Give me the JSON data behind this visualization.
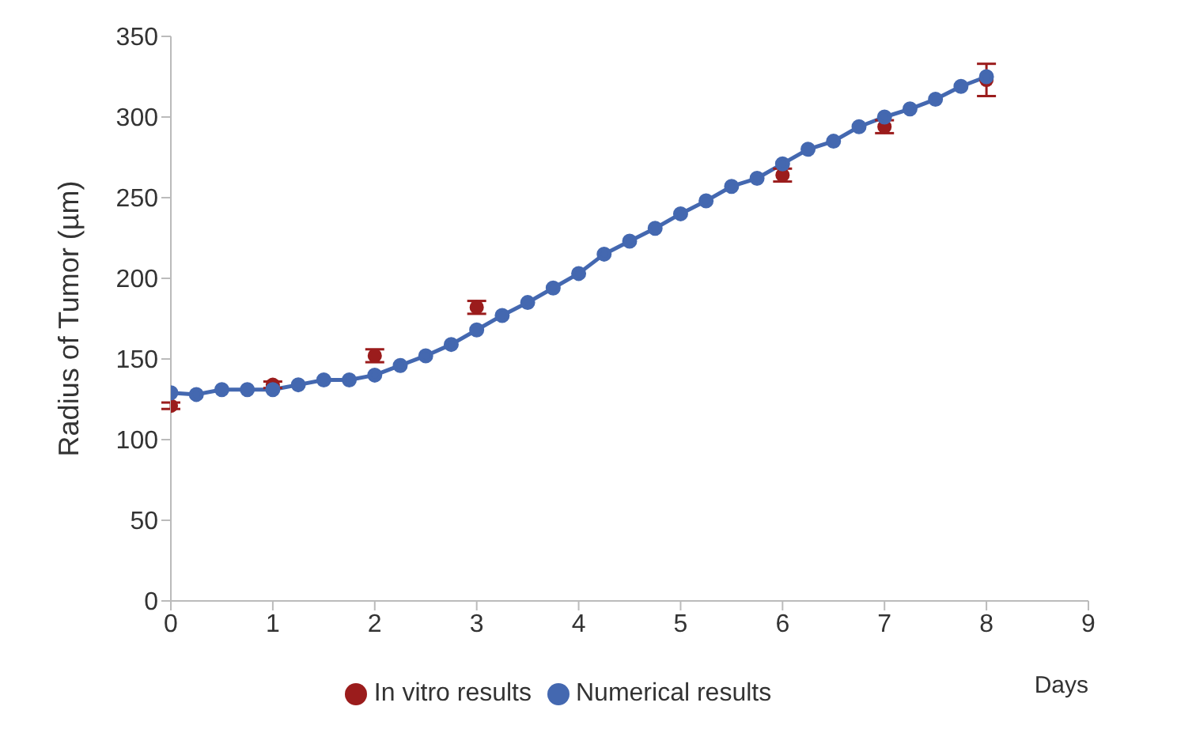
{
  "chart_data": {
    "type": "line",
    "xlabel": "Days",
    "ylabel": "Radius of Tumor (µm)",
    "xlim": [
      0,
      9
    ],
    "xticks": [
      0,
      1,
      2,
      3,
      4,
      5,
      6,
      7,
      8,
      9
    ],
    "ylim": [
      0,
      350
    ],
    "yticks": [
      0,
      50,
      100,
      150,
      200,
      250,
      300,
      350
    ],
    "grid": false,
    "legend": "bottom",
    "marker": "circle",
    "line_style": "solid",
    "series": [
      {
        "name": "In vitro results",
        "type": "scatter",
        "color": "#9b1c1c",
        "x": [
          0,
          1,
          2,
          3,
          6,
          7,
          8
        ],
        "values": [
          121,
          134,
          152,
          182,
          264,
          294,
          323
        ],
        "errors": [
          2,
          2,
          4,
          4,
          4,
          4,
          10
        ]
      },
      {
        "name": "Numerical results",
        "color": "#4468b0",
        "x": [
          0,
          0.25,
          0.5,
          0.75,
          1,
          1.25,
          1.5,
          1.75,
          2,
          2.25,
          2.5,
          2.75,
          3,
          3.25,
          3.5,
          3.75,
          4,
          4.25,
          4.5,
          4.75,
          5,
          5.25,
          5.5,
          5.75,
          6,
          6.25,
          6.5,
          6.75,
          7,
          7.25,
          7.5,
          7.75,
          8
        ],
        "values": [
          129,
          128,
          131,
          131,
          131,
          134,
          137,
          137,
          140,
          146,
          152,
          159,
          168,
          177,
          185,
          194,
          203,
          215,
          223,
          231,
          240,
          248,
          257,
          262,
          271,
          280,
          285,
          294,
          300,
          305,
          311,
          319,
          325
        ]
      }
    ]
  }
}
